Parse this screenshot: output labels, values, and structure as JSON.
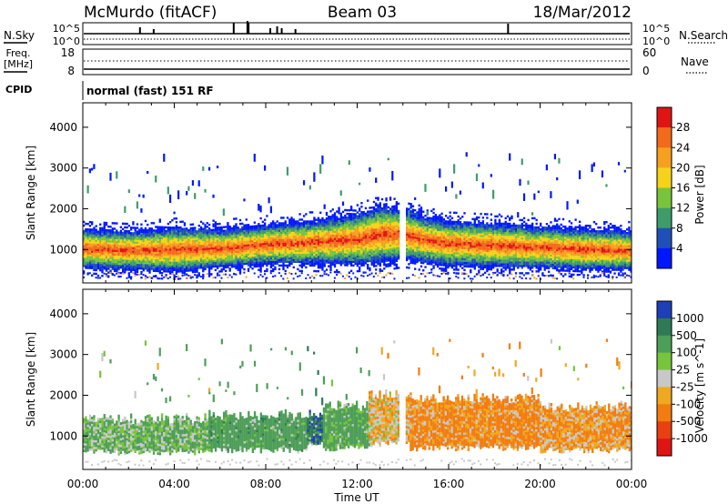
{
  "header": {
    "station": "McMurdo (fitACF)",
    "beam": "Beam 03",
    "date": "18/Mar/2012"
  },
  "strips": {
    "noise": {
      "left_label": "N.Sky",
      "right_label": "N.Search",
      "left_ticks": [
        "10^5",
        "10^0"
      ],
      "right_ticks": [
        "10^5",
        "10^0"
      ]
    },
    "freq": {
      "left_label_1": "Freq.",
      "left_label_2": "[MHz]",
      "right_label": "Nave",
      "left_ticks": [
        "18",
        "8"
      ],
      "right_ticks": [
        "60",
        "0"
      ]
    },
    "cpid": {
      "label": "CPID",
      "text": "normal (fast) 151 RF"
    }
  },
  "chart_data": [
    {
      "type": "heatmap",
      "panel": "power",
      "xlabel": "",
      "ylabel": "Slant Range [km]",
      "colorbar_label": "Power [dB]",
      "xlim": [
        0,
        24
      ],
      "ylim": [
        180,
        4600
      ],
      "yticks": [
        1000,
        2000,
        3000,
        4000
      ],
      "colorbar_ticks": [
        4,
        8,
        12,
        16,
        20,
        24,
        28
      ],
      "colorbar_colors": [
        "#0018ff",
        "#1f4fb8",
        "#3e9c6a",
        "#78c43c",
        "#f5d31a",
        "#f6a020",
        "#f36a1a",
        "#e11414"
      ],
      "core_band": [
        {
          "t": 0,
          "lo": 700,
          "hi": 1300
        },
        {
          "t": 2,
          "lo": 650,
          "hi": 1250
        },
        {
          "t": 4,
          "lo": 600,
          "hi": 1350
        },
        {
          "t": 6,
          "lo": 700,
          "hi": 1300
        },
        {
          "t": 8,
          "lo": 800,
          "hi": 1400
        },
        {
          "t": 10,
          "lo": 800,
          "hi": 1500
        },
        {
          "t": 12,
          "lo": 750,
          "hi": 1700
        },
        {
          "t": 13,
          "lo": 800,
          "hi": 1900
        },
        {
          "t": 14,
          "lo": 900,
          "hi": 1800
        },
        {
          "t": 15,
          "lo": 800,
          "hi": 1600
        },
        {
          "t": 16,
          "lo": 750,
          "hi": 1500
        },
        {
          "t": 18,
          "lo": 700,
          "hi": 1450
        },
        {
          "t": 20,
          "lo": 700,
          "hi": 1350
        },
        {
          "t": 22,
          "lo": 650,
          "hi": 1300
        },
        {
          "t": 24,
          "lo": 650,
          "hi": 1250
        }
      ]
    },
    {
      "type": "heatmap",
      "panel": "velocity",
      "xlabel": "Time UT",
      "ylabel": "Slant Range [km]",
      "colorbar_label": "Velocity [m s^-1]",
      "xlim": [
        0,
        24
      ],
      "ylim": [
        180,
        4600
      ],
      "yticks": [
        1000,
        2000,
        3000,
        4000
      ],
      "xticks": [
        "00:00",
        "04:00",
        "08:00",
        "12:00",
        "16:00",
        "20:00",
        "00:00"
      ],
      "colorbar_ticks": [
        1000,
        500,
        100,
        25,
        -25,
        -100,
        -500,
        -1000
      ],
      "colorbar_colors": [
        "#1e3fb5",
        "#2f7a55",
        "#4d9e58",
        "#78c43c",
        "#c8c8c8",
        "#f0a820",
        "#f27c10",
        "#e84010",
        "#e11414"
      ],
      "segments": [
        {
          "t0": 0,
          "t1": 5.5,
          "lo": 600,
          "hi": 1400,
          "v": 100
        },
        {
          "t0": 5.5,
          "t1": 9.8,
          "lo": 650,
          "hi": 1500,
          "v": 300
        },
        {
          "t0": 9.8,
          "t1": 10.5,
          "lo": 800,
          "hi": 1500,
          "v": 800
        },
        {
          "t0": 10.5,
          "t1": 12.5,
          "lo": 700,
          "hi": 1700,
          "v": 200
        },
        {
          "t0": 12.5,
          "t1": 14.3,
          "lo": 800,
          "hi": 2000,
          "v": -50
        },
        {
          "t0": 14.3,
          "t1": 20,
          "lo": 700,
          "hi": 1900,
          "v": -150
        },
        {
          "t0": 20,
          "t1": 24,
          "lo": 650,
          "hi": 1700,
          "v": -100
        }
      ]
    }
  ]
}
